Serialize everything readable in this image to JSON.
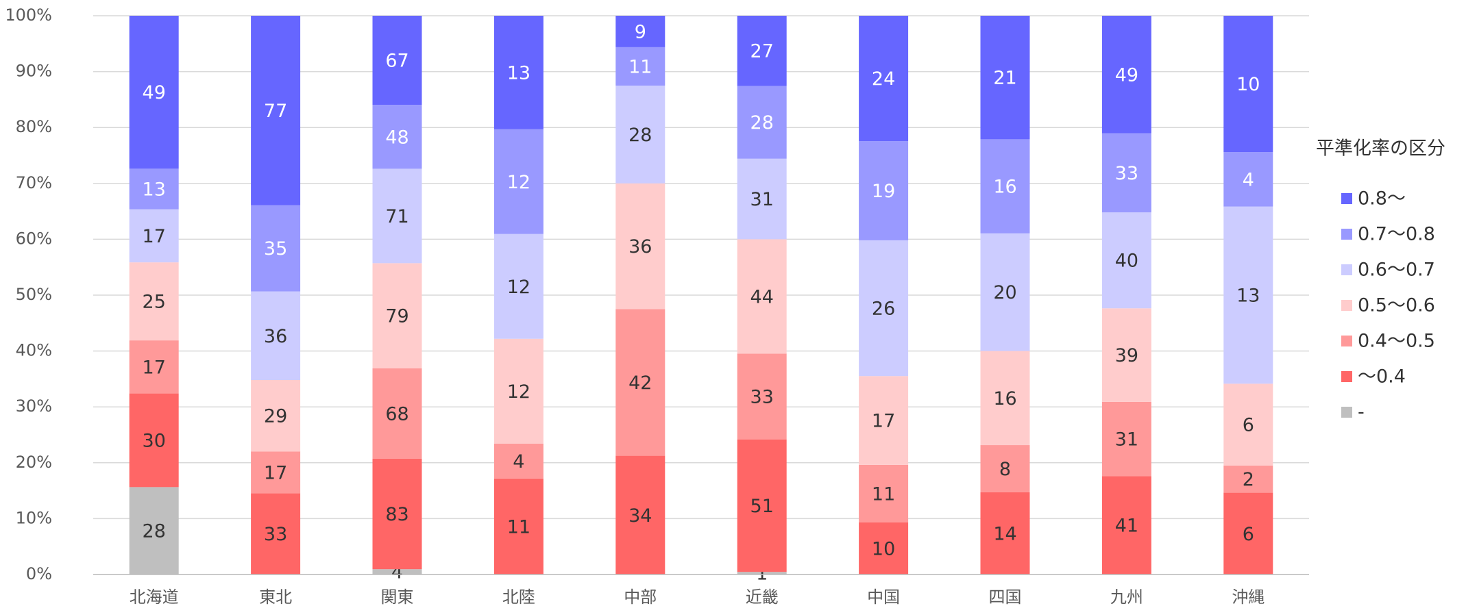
{
  "chart_data": {
    "type": "bar",
    "stack": "percent",
    "categories": [
      "北海道",
      "東北",
      "関東",
      "北陸",
      "中部",
      "近畿",
      "中国",
      "四国",
      "九州",
      "沖縄"
    ],
    "series": [
      {
        "name": "0.8〜",
        "color": "#6666ff",
        "label_color": "#ffffff",
        "values": [
          49,
          77,
          67,
          13,
          9,
          27,
          24,
          21,
          49,
          10
        ]
      },
      {
        "name": "0.7〜0.8",
        "color": "#9999ff",
        "label_color": "#ffffff",
        "values": [
          13,
          35,
          48,
          12,
          11,
          28,
          19,
          16,
          33,
          4
        ]
      },
      {
        "name": "0.6〜0.7",
        "color": "#ccccff",
        "label_color": "#333333",
        "values": [
          17,
          36,
          71,
          12,
          28,
          31,
          26,
          20,
          40,
          13
        ]
      },
      {
        "name": "0.5〜0.6",
        "color": "#ffcccc",
        "label_color": "#333333",
        "values": [
          25,
          29,
          79,
          12,
          36,
          44,
          17,
          16,
          39,
          6
        ]
      },
      {
        "name": "0.4〜0.5",
        "color": "#ff9999",
        "label_color": "#333333",
        "values": [
          17,
          17,
          68,
          4,
          42,
          33,
          11,
          8,
          31,
          2
        ]
      },
      {
        "name": "〜0.4",
        "color": "#ff6666",
        "label_color": "#333333",
        "values": [
          30,
          33,
          83,
          11,
          34,
          51,
          10,
          14,
          41,
          6
        ]
      },
      {
        "name": "-",
        "color": "#bfbfbf",
        "label_color": "#333333",
        "values": [
          28,
          null,
          4,
          null,
          null,
          1,
          null,
          null,
          null,
          null
        ]
      }
    ],
    "legend_title": "平準化率の区分",
    "legend": "right",
    "ylim": [
      0,
      100
    ],
    "yticks": [
      {
        "value": 0,
        "label": "0%"
      },
      {
        "value": 10,
        "label": "10%"
      },
      {
        "value": 20,
        "label": "20%"
      },
      {
        "value": 30,
        "label": "30%"
      },
      {
        "value": 40,
        "label": "40%"
      },
      {
        "value": 50,
        "label": "50%"
      },
      {
        "value": 60,
        "label": "60%"
      },
      {
        "value": 70,
        "label": "70%"
      },
      {
        "value": 80,
        "label": "80%"
      },
      {
        "value": 90,
        "label": "90%"
      },
      {
        "value": 100,
        "label": "100%"
      }
    ],
    "grid": true
  }
}
